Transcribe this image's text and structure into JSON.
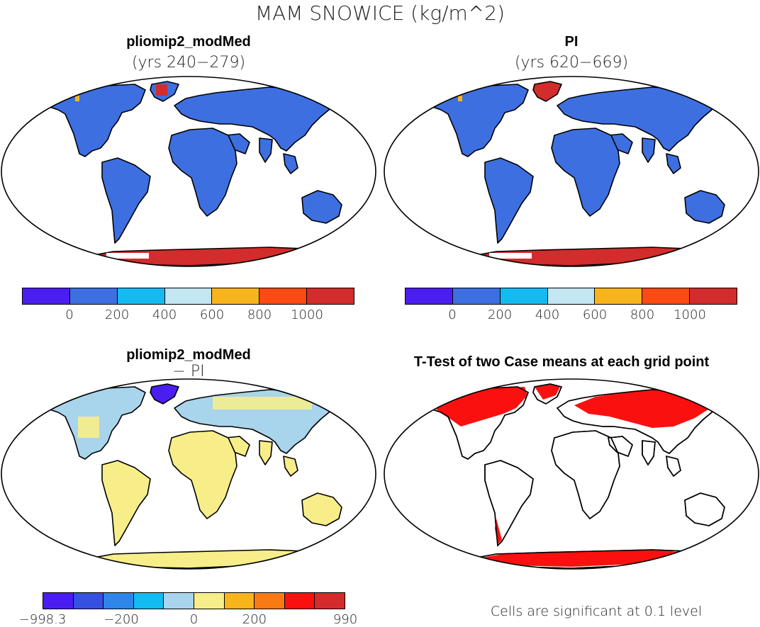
{
  "title": "MAM SNOWICE (kg/m^2)",
  "panels": {
    "top_left": {
      "title": "pliomip2_modMed",
      "subtitle": "(yrs 240−279)"
    },
    "top_right": {
      "title": "PI",
      "subtitle": "(yrs 620−669)"
    },
    "bottom_left": {
      "title": "pliomip2_modMed",
      "subtitle": "− PI"
    },
    "bottom_right": {
      "title": "T-Test of two Case means at each grid point",
      "footnote": "Cells are significant at 0.1 level"
    }
  },
  "colorbars": {
    "abs": {
      "colors": [
        "#4a1ef0",
        "#3d6fe0",
        "#14bbf0",
        "#c2e6f2",
        "#f8b41c",
        "#fb4a14",
        "#d22c2c"
      ],
      "labels": [
        "0",
        "200",
        "400",
        "600",
        "800",
        "1000"
      ]
    },
    "diff": {
      "colors": [
        "#4a1ef0",
        "#3650e0",
        "#2f86e8",
        "#14bbf0",
        "#a8d4ec",
        "#f7ee8a",
        "#f8b41c",
        "#f77a14",
        "#fb1010",
        "#d22c2c"
      ],
      "labels": [
        "−998.3",
        "−200",
        "0",
        "200",
        "990"
      ]
    }
  },
  "fills": {
    "land_blue": "#3d6fe0",
    "ice_red": "#d22c2c",
    "diff_yellow": "#f7ee8a",
    "diff_lightblue": "#a8d4ec",
    "diff_purple": "#4a1ef0",
    "signif_red": "#fb1010"
  }
}
